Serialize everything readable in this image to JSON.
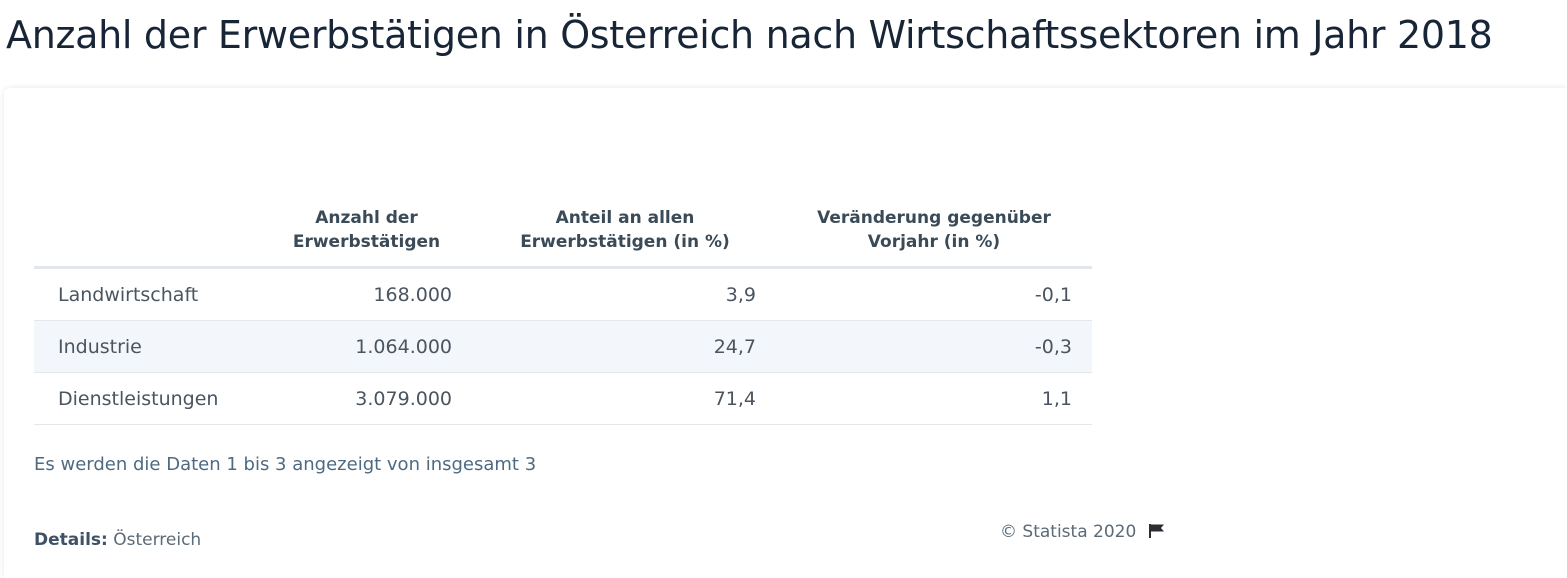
{
  "title": "Anzahl der Erwerbstätigen in Österreich nach Wirtschaftssektoren im Jahr 2018",
  "table": {
    "headers": [
      "",
      "Anzahl der Erwerbstätigen",
      "Anteil an allen Erwerbstätigen (in %)",
      "Veränderung gegenüber Vorjahr (in %)"
    ],
    "rows": [
      [
        "Landwirtschaft",
        "168.000",
        "3,9",
        "-0,1"
      ],
      [
        "Industrie",
        "1.064.000",
        "24,7",
        "-0,3"
      ],
      [
        "Dienstleistungen",
        "3.079.000",
        "71,4",
        "1,1"
      ]
    ]
  },
  "status_text": "Es werden die Daten 1 bis 3 angezeigt von insgesamt 3",
  "details": {
    "label": "Details:",
    "value": "Österreich"
  },
  "copyright": "© Statista 2020",
  "icons": {
    "flag": "flag-icon"
  },
  "colors": {
    "title": "#172536",
    "row_alt": "#f3f6fa",
    "border": "#e3e6ea"
  }
}
